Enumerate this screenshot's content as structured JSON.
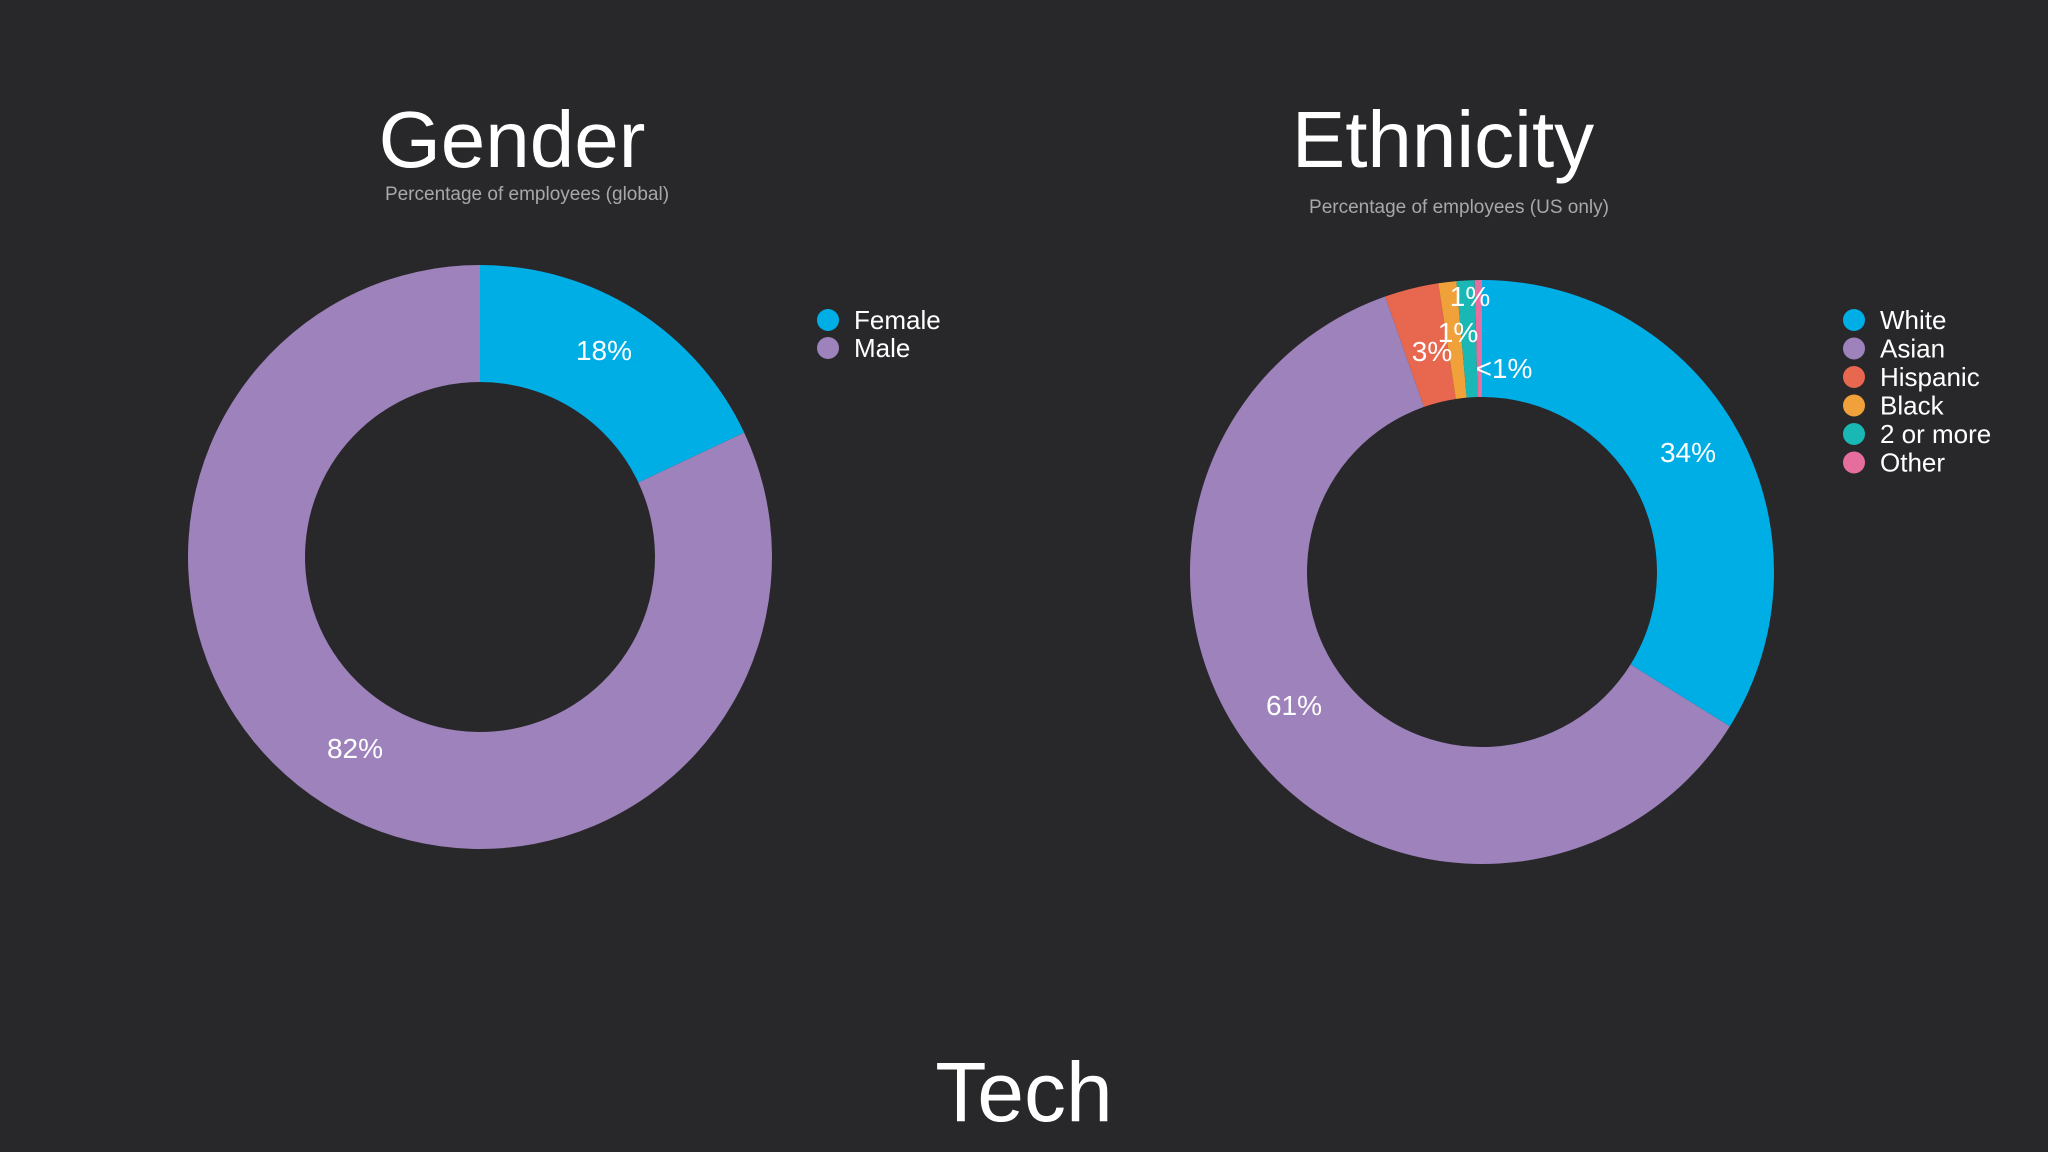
{
  "footer_title": "Tech",
  "chart_data": [
    {
      "type": "pie",
      "donut": true,
      "title": "Gender",
      "subtitle": "Percentage of employees (global)",
      "legend_position": "right",
      "slices": [
        {
          "name": "Female",
          "value": 18,
          "label": "18%",
          "color": "#00aee6"
        },
        {
          "name": "Male",
          "value": 82,
          "label": "82%",
          "color": "#9e82bb"
        }
      ]
    },
    {
      "type": "pie",
      "donut": true,
      "title": "Ethnicity",
      "subtitle": "Percentage of employees (US only)",
      "legend_position": "right",
      "slices": [
        {
          "name": "White",
          "value": 34,
          "label": "34%",
          "color": "#00aee6"
        },
        {
          "name": "Asian",
          "value": 61,
          "label": "61%",
          "color": "#9e82bb"
        },
        {
          "name": "Hispanic",
          "value": 3,
          "label": "3%",
          "color": "#e8674f"
        },
        {
          "name": "Black",
          "value": 1,
          "label": "1%",
          "color": "#f0a13a"
        },
        {
          "name": "2 or more",
          "value": 1,
          "label": "1%",
          "color": "#1ab8b4"
        },
        {
          "name": "Other",
          "value": 0.4,
          "label": "<1%",
          "color": "#e66e9e"
        }
      ]
    }
  ]
}
